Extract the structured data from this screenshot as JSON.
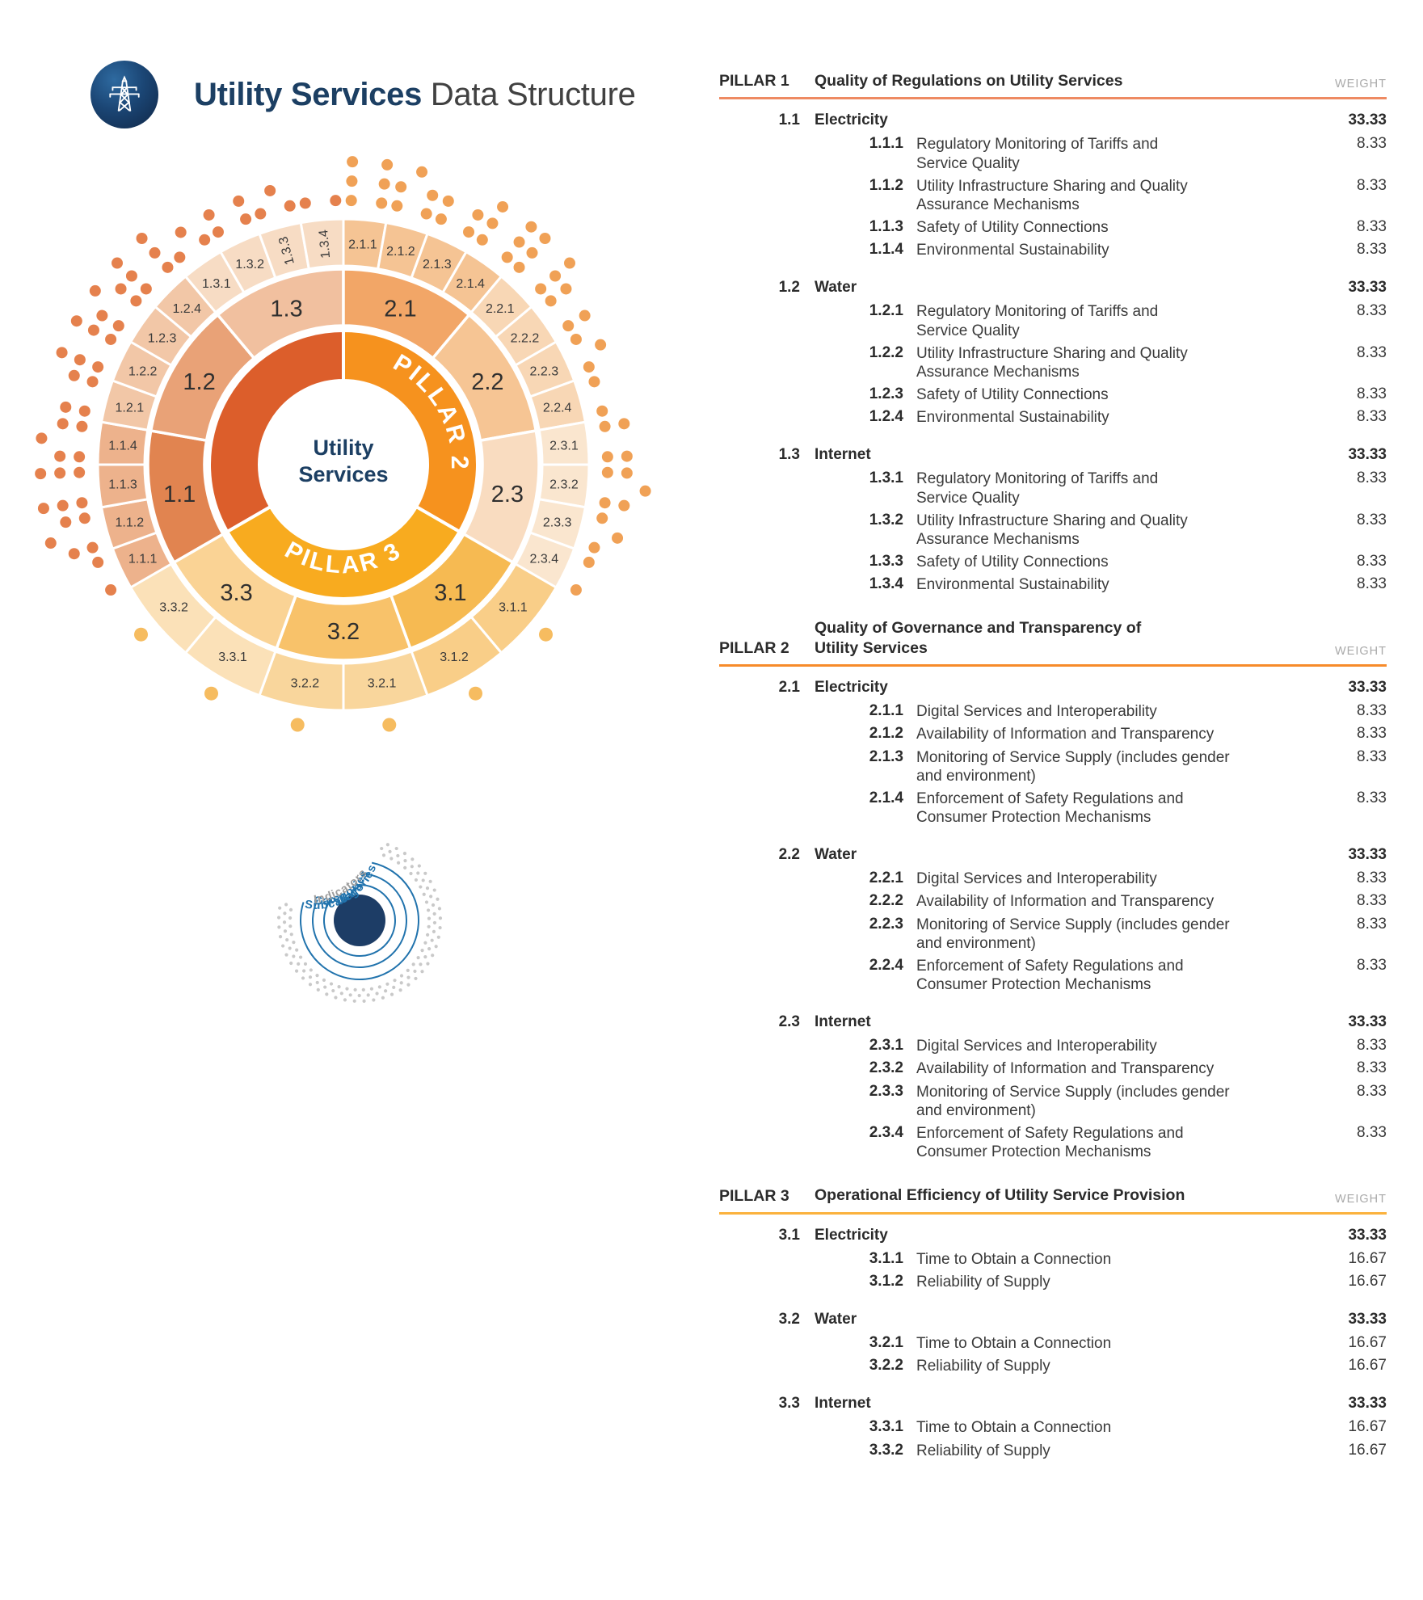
{
  "header": {
    "title_strong": "Utility Services",
    "title_rest": " Data Structure",
    "logo_icon": "transmission-tower-icon",
    "navy": "#1c3f63"
  },
  "sunburst": {
    "center_lines": [
      "Utility",
      "Services"
    ],
    "pillars": [
      {
        "label": "PILLAR 1",
        "color": "#dc5e2b",
        "dot_color": "#e5814d",
        "dot_size": 7,
        "categories": [
          {
            "id": "1.1",
            "color": "#e18450",
            "sub_color": "#edb28c",
            "subs": [
              {
                "id": "1.1.1",
                "dots": 2
              },
              {
                "id": "1.1.2",
                "dots": 5
              },
              {
                "id": "1.1.3",
                "dots": 6
              },
              {
                "id": "1.1.4",
                "dots": 5
              }
            ]
          },
          {
            "id": "1.2",
            "color": "#e9a277",
            "sub_color": "#f2c7a7",
            "subs": [
              {
                "id": "1.2.1",
                "dots": 4
              },
              {
                "id": "1.2.2",
                "dots": 6
              },
              {
                "id": "1.2.3",
                "dots": 5
              },
              {
                "id": "1.2.4",
                "dots": 6
              }
            ]
          },
          {
            "id": "1.3",
            "color": "#f1c09f",
            "sub_color": "#f7dcc4",
            "subs": [
              {
                "id": "1.3.1",
                "dots": 3
              },
              {
                "id": "1.3.2",
                "dots": 4
              },
              {
                "id": "1.3.3",
                "dots": 3,
                "rot": true
              },
              {
                "id": "1.3.4",
                "dots": 2,
                "rot": true
              }
            ]
          }
        ]
      },
      {
        "label": "PILLAR 2",
        "color": "#f6921e",
        "dot_color": "#f0a156",
        "dot_size": 7,
        "categories": [
          {
            "id": "2.1",
            "color": "#f2a667",
            "sub_color": "#f5c494",
            "subs": [
              {
                "id": "2.1.1",
                "dots": 6
              },
              {
                "id": "2.1.2",
                "dots": 5
              },
              {
                "id": "2.1.3",
                "dots": 4
              },
              {
                "id": "2.1.4",
                "dots": 6
              }
            ]
          },
          {
            "id": "2.2",
            "color": "#f6c594",
            "sub_color": "#f8d7b5",
            "subs": [
              {
                "id": "2.2.1",
                "dots": 6
              },
              {
                "id": "2.2.2",
                "dots": 4
              },
              {
                "id": "2.2.3",
                "dots": 3
              },
              {
                "id": "2.2.4",
                "dots": 2
              }
            ]
          },
          {
            "id": "2.3",
            "color": "#f9dcc0",
            "sub_color": "#fae6cf",
            "subs": [
              {
                "id": "2.3.1",
                "dots": 4
              },
              {
                "id": "2.3.2",
                "dots": 5
              },
              {
                "id": "2.3.3",
                "dots": 3
              },
              {
                "id": "2.3.4",
                "dots": 2
              }
            ]
          }
        ]
      },
      {
        "label": "PILLAR 3",
        "color": "#f8ab1f",
        "dot_color": "#f6bc60",
        "dot_size": 8.5,
        "categories": [
          {
            "id": "3.1",
            "color": "#f6ba52",
            "sub_color": "#f9ce88",
            "subs": [
              {
                "id": "3.1.1",
                "dots": 1
              },
              {
                "id": "3.1.2",
                "dots": 1
              }
            ]
          },
          {
            "id": "3.2",
            "color": "#f8c26a",
            "sub_color": "#f9d69c",
            "subs": [
              {
                "id": "3.2.1",
                "dots": 1
              },
              {
                "id": "3.2.2",
                "dots": 1
              }
            ]
          },
          {
            "id": "3.3",
            "color": "#fad395",
            "sub_color": "#fbe1b8",
            "subs": [
              {
                "id": "3.3.1",
                "dots": 1
              },
              {
                "id": "3.3.2",
                "dots": 1
              }
            ]
          }
        ]
      }
    ],
    "legend": {
      "rings": [
        "Pillars",
        "Categories",
        "Subcategories",
        "Indicators"
      ],
      "ring_color": "#2173ad",
      "indicator_color": "#9c9c9c",
      "core_color": "#1d3d66"
    }
  },
  "table": {
    "weight_label": "WEIGHT",
    "pillars": [
      {
        "id": "PILLAR 1",
        "title": "Quality of Regulations on Utility Services",
        "rule_color": "#ee8a62",
        "categories": [
          {
            "num": "1.1",
            "label": "Electricity",
            "weight": "33.33",
            "subs": [
              {
                "num": "1.1.1",
                "label": "Regulatory Monitoring of Tariffs and\nService Quality",
                "weight": "8.33"
              },
              {
                "num": "1.1.2",
                "label": "Utility Infrastructure Sharing and Quality\nAssurance Mechanisms",
                "weight": "8.33"
              },
              {
                "num": "1.1.3",
                "label": "Safety of Utility Connections",
                "weight": "8.33"
              },
              {
                "num": "1.1.4",
                "label": "Environmental Sustainability",
                "weight": "8.33"
              }
            ]
          },
          {
            "num": "1.2",
            "label": "Water",
            "weight": "33.33",
            "subs": [
              {
                "num": "1.2.1",
                "label": "Regulatory Monitoring of Tariffs and\nService Quality",
                "weight": "8.33"
              },
              {
                "num": "1.2.2",
                "label": "Utility Infrastructure Sharing and Quality\nAssurance Mechanisms",
                "weight": "8.33"
              },
              {
                "num": "1.2.3",
                "label": "Safety of Utility Connections",
                "weight": "8.33"
              },
              {
                "num": "1.2.4",
                "label": "Environmental Sustainability",
                "weight": "8.33"
              }
            ]
          },
          {
            "num": "1.3",
            "label": "Internet",
            "weight": "33.33",
            "subs": [
              {
                "num": "1.3.1",
                "label": "Regulatory Monitoring of Tariffs and\nService Quality",
                "weight": "8.33"
              },
              {
                "num": "1.3.2",
                "label": "Utility Infrastructure Sharing and Quality\nAssurance Mechanisms",
                "weight": "8.33"
              },
              {
                "num": "1.3.3",
                "label": "Safety of Utility Connections",
                "weight": "8.33"
              },
              {
                "num": "1.3.4",
                "label": "Environmental Sustainability",
                "weight": "8.33"
              }
            ]
          }
        ]
      },
      {
        "id": "PILLAR 2",
        "title": "Quality of Governance and Transparency of\nUtility Services",
        "rule_color": "#f78b2a",
        "categories": [
          {
            "num": "2.1",
            "label": "Electricity",
            "weight": "33.33",
            "subs": [
              {
                "num": "2.1.1",
                "label": "Digital Services and Interoperability",
                "weight": "8.33"
              },
              {
                "num": "2.1.2",
                "label": "Availability of Information and Transparency",
                "weight": "8.33"
              },
              {
                "num": "2.1.3",
                "label": "Monitoring of Service Supply (includes gender\nand environment)",
                "weight": "8.33"
              },
              {
                "num": "2.1.4",
                "label": "Enforcement of Safety Regulations and\nConsumer Protection Mechanisms",
                "weight": "8.33"
              }
            ]
          },
          {
            "num": "2.2",
            "label": "Water",
            "weight": "33.33",
            "subs": [
              {
                "num": "2.2.1",
                "label": "Digital Services and Interoperability",
                "weight": "8.33"
              },
              {
                "num": "2.2.2",
                "label": "Availability of Information and Transparency",
                "weight": "8.33"
              },
              {
                "num": "2.2.3",
                "label": "Monitoring of Service Supply (includes gender\nand environment)",
                "weight": "8.33"
              },
              {
                "num": "2.2.4",
                "label": "Enforcement of Safety Regulations and\nConsumer Protection Mechanisms",
                "weight": "8.33"
              }
            ]
          },
          {
            "num": "2.3",
            "label": "Internet",
            "weight": "33.33",
            "subs": [
              {
                "num": "2.3.1",
                "label": "Digital Services and Interoperability",
                "weight": "8.33"
              },
              {
                "num": "2.3.2",
                "label": "Availability of Information and Transparency",
                "weight": "8.33"
              },
              {
                "num": "2.3.3",
                "label": "Monitoring of Service Supply (includes gender\nand environment)",
                "weight": "8.33"
              },
              {
                "num": "2.3.4",
                "label": "Enforcement of Safety Regulations and\nConsumer Protection Mechanisms",
                "weight": "8.33"
              }
            ]
          }
        ]
      },
      {
        "id": "PILLAR 3",
        "title": "Operational Efficiency of Utility Service Provision",
        "rule_color": "#fbb23d",
        "categories": [
          {
            "num": "3.1",
            "label": "Electricity",
            "weight": "33.33",
            "subs": [
              {
                "num": "3.1.1",
                "label": "Time to Obtain a Connection",
                "weight": "16.67"
              },
              {
                "num": "3.1.2",
                "label": "Reliability of Supply",
                "weight": "16.67"
              }
            ]
          },
          {
            "num": "3.2",
            "label": "Water",
            "weight": "33.33",
            "subs": [
              {
                "num": "3.2.1",
                "label": "Time to Obtain a Connection",
                "weight": "16.67"
              },
              {
                "num": "3.2.2",
                "label": "Reliability of Supply",
                "weight": "16.67"
              }
            ]
          },
          {
            "num": "3.3",
            "label": "Internet",
            "weight": "33.33",
            "subs": [
              {
                "num": "3.3.1",
                "label": "Time to Obtain a Connection",
                "weight": "16.67"
              },
              {
                "num": "3.3.2",
                "label": "Reliability of Supply",
                "weight": "16.67"
              }
            ]
          }
        ]
      }
    ]
  }
}
